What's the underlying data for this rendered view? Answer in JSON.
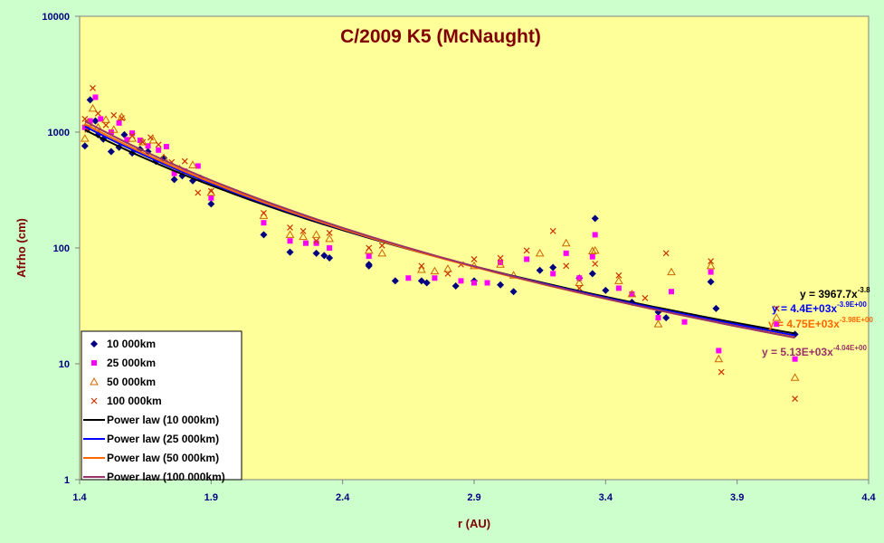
{
  "colors": {
    "background": "#ccffcc",
    "plot_area": "#ffff99",
    "title": "#800000",
    "tick_labels": "#000080"
  },
  "chart_data": {
    "type": "scatter",
    "title": "C/2009 K5 (McNaught)",
    "xlabel": "r (AU)",
    "ylabel": "Afrho (cm)",
    "x_scale": "linear",
    "y_scale": "log",
    "xlim": [
      1.4,
      4.4
    ],
    "ylim": [
      1,
      10000
    ],
    "x_ticks": [
      "1.4",
      "1.9",
      "2.4",
      "2.9",
      "3.4",
      "3.9",
      "4.4"
    ],
    "y_ticks": [
      "1",
      "10",
      "100",
      "1000",
      "10000"
    ],
    "grid": false,
    "legend_position": "bottom-left",
    "legend": [
      {
        "label": "10 000km",
        "kind": "marker",
        "marker": "diamond",
        "color": "#000080"
      },
      {
        "label": "25 000km",
        "kind": "marker",
        "marker": "square",
        "color": "#ff00ff"
      },
      {
        "label": "50 000km",
        "kind": "marker",
        "marker": "triangle",
        "color": "#cc6600"
      },
      {
        "label": "100 000km",
        "kind": "marker",
        "marker": "x",
        "color": "#cc3300"
      },
      {
        "label": "Power law (10 000km)",
        "kind": "line",
        "color": "#000000"
      },
      {
        "label": "Power law (25 000km)",
        "kind": "line",
        "color": "#0000ff"
      },
      {
        "label": "Power law (50 000km)",
        "kind": "line",
        "color": "#ff6600"
      },
      {
        "label": "Power law (100 000km)",
        "kind": "line",
        "color": "#993366"
      }
    ],
    "series": [
      {
        "name": "10 000km",
        "marker": "diamond",
        "color": "#000080",
        "x": [
          1.42,
          1.43,
          1.44,
          1.46,
          1.47,
          1.49,
          1.52,
          1.55,
          1.57,
          1.6,
          1.63,
          1.66,
          1.69,
          1.72,
          1.76,
          1.79,
          1.83,
          1.86,
          1.9,
          2.1,
          2.2,
          2.3,
          2.33,
          2.35,
          2.5,
          2.5,
          2.6,
          2.7,
          2.72,
          2.83,
          2.9,
          3.0,
          3.05,
          3.15,
          3.2,
          3.3,
          3.35,
          3.36,
          3.4,
          3.5,
          3.6,
          3.63,
          3.8,
          3.82,
          4.12
        ],
        "y": [
          760,
          1060,
          1900,
          1250,
          950,
          870,
          680,
          740,
          950,
          660,
          710,
          680,
          560,
          600,
          390,
          420,
          380,
          400,
          240,
          130,
          92,
          90,
          86,
          82,
          70,
          72,
          52,
          52,
          50,
          47,
          52,
          48,
          42,
          64,
          68,
          55,
          60,
          180,
          43,
          34,
          28,
          25,
          51,
          30,
          18
        ]
      },
      {
        "name": "25 000km",
        "marker": "square",
        "color": "#ff00ff",
        "x": [
          1.42,
          1.44,
          1.46,
          1.48,
          1.52,
          1.55,
          1.58,
          1.6,
          1.63,
          1.66,
          1.7,
          1.73,
          1.76,
          1.8,
          1.85,
          1.9,
          2.1,
          2.2,
          2.26,
          2.3,
          2.35,
          2.5,
          2.65,
          2.75,
          2.85,
          2.9,
          2.95,
          3.0,
          3.1,
          3.2,
          3.25,
          3.3,
          3.35,
          3.36,
          3.45,
          3.5,
          3.6,
          3.65,
          3.7,
          3.8,
          3.83,
          4.05,
          4.12
        ],
        "y": [
          1100,
          1250,
          2000,
          1300,
          1000,
          1200,
          860,
          980,
          850,
          760,
          700,
          750,
          440,
          460,
          510,
          270,
          165,
          115,
          110,
          110,
          100,
          85,
          55,
          55,
          52,
          50,
          50,
          75,
          80,
          60,
          90,
          55,
          84,
          130,
          45,
          40,
          25,
          42,
          23,
          62,
          13,
          22,
          11
        ]
      },
      {
        "name": "50 000km",
        "marker": "triangle",
        "color": "#cc6600",
        "x": [
          1.42,
          1.43,
          1.45,
          1.47,
          1.5,
          1.53,
          1.56,
          1.6,
          1.64,
          1.68,
          1.72,
          1.78,
          1.83,
          1.9,
          2.1,
          2.2,
          2.25,
          2.3,
          2.35,
          2.5,
          2.55,
          2.7,
          2.75,
          2.8,
          2.9,
          3.0,
          3.05,
          3.15,
          3.25,
          3.3,
          3.35,
          3.36,
          3.45,
          3.5,
          3.6,
          3.65,
          3.8,
          3.83,
          4.05,
          4.12
        ],
        "y": [
          880,
          1200,
          1600,
          1100,
          1280,
          1050,
          1350,
          880,
          820,
          850,
          600,
          480,
          520,
          300,
          190,
          130,
          125,
          130,
          120,
          95,
          90,
          65,
          63,
          66,
          70,
          72,
          58,
          90,
          110,
          50,
          94,
          95,
          52,
          40,
          22,
          62,
          70,
          11,
          25,
          7.6
        ]
      },
      {
        "name": "100 000km",
        "marker": "x",
        "color": "#cc3300",
        "x": [
          1.42,
          1.43,
          1.45,
          1.47,
          1.5,
          1.53,
          1.56,
          1.6,
          1.64,
          1.67,
          1.7,
          1.75,
          1.8,
          1.85,
          1.9,
          2.1,
          2.2,
          2.25,
          2.3,
          2.35,
          2.5,
          2.55,
          2.7,
          2.8,
          2.85,
          2.9,
          3.0,
          3.1,
          3.2,
          3.25,
          3.3,
          3.36,
          3.45,
          3.55,
          3.63,
          3.8,
          3.84,
          4.05,
          4.12
        ],
        "y": [
          1300,
          1050,
          2400,
          1450,
          1150,
          1400,
          1320,
          930,
          820,
          900,
          780,
          550,
          560,
          300,
          310,
          200,
          150,
          140,
          115,
          135,
          100,
          105,
          70,
          60,
          72,
          80,
          82,
          95,
          140,
          70,
          45,
          73,
          58,
          37,
          90,
          77,
          8.5,
          30,
          5
        ]
      }
    ],
    "trendlines": [
      {
        "name": "Power law (10 000km)",
        "color": "#000000",
        "a": 3967.7,
        "b": -3.8
      },
      {
        "name": "Power law (25 000km)",
        "color": "#0000ff",
        "a": 4400,
        "b": -3.9
      },
      {
        "name": "Power law (50 000km)",
        "color": "#ff6600",
        "a": 4750,
        "b": -3.98
      },
      {
        "name": "Power law (100 000km)",
        "color": "#993366",
        "a": 5130,
        "b": -4.04
      }
    ],
    "equations": [
      {
        "text": "y = 3967.7x",
        "exp": "-3.8",
        "color": "#000000"
      },
      {
        "text": "y = 4.4E+03x",
        "exp": "-3.9E+00",
        "color": "#0000ff"
      },
      {
        "text": "y = 4.75E+03x",
        "exp": "-3.98E+00",
        "color": "#ff6600"
      },
      {
        "text": "y = 5.13E+03x",
        "exp": "-4.04E+00",
        "color": "#993366"
      }
    ]
  }
}
